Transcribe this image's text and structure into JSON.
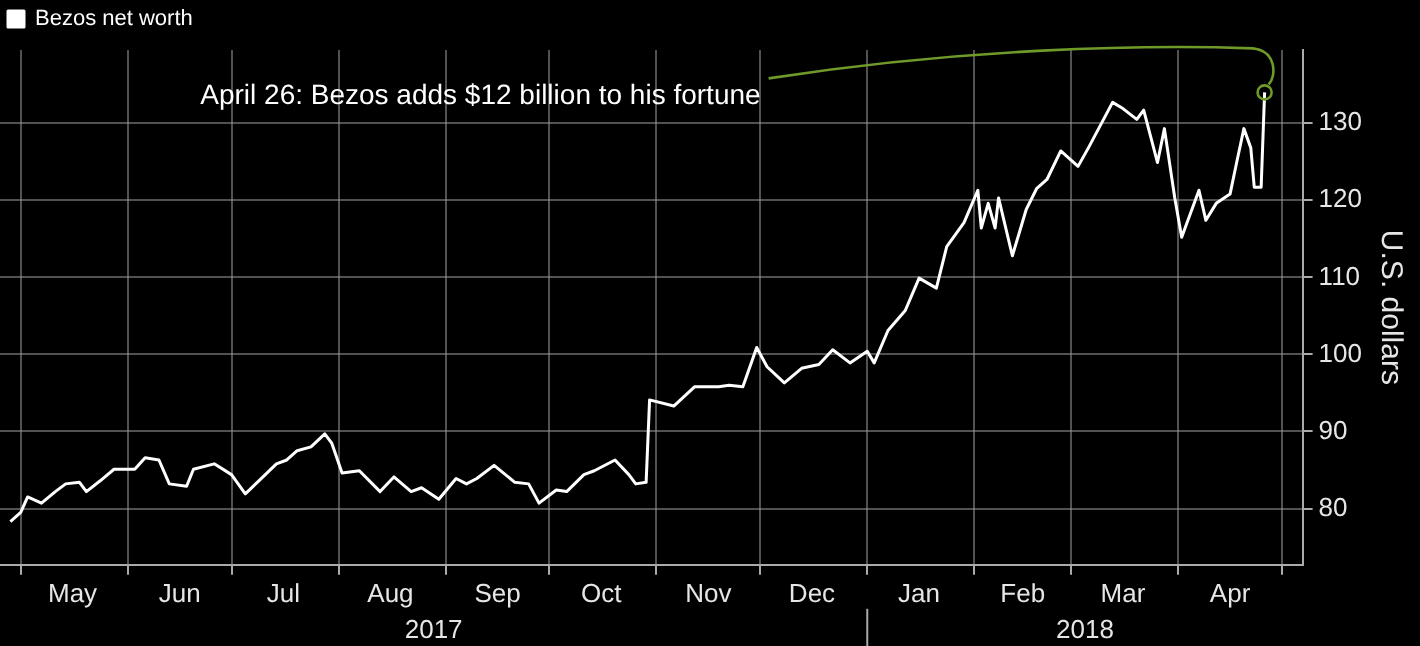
{
  "chart_data": {
    "type": "line",
    "ylabel": "U.S. dollars",
    "legend": "top left",
    "grid": true,
    "marker": "none",
    "line_style": "solid",
    "x": [
      "2017-04-28",
      "2017-05-01",
      "2017-05-03",
      "2017-05-07",
      "2017-05-11",
      "2017-05-14",
      "2017-05-18",
      "2017-05-20",
      "2017-05-24",
      "2017-05-28",
      "2017-06-03",
      "2017-06-06",
      "2017-06-10",
      "2017-06-13",
      "2017-06-18",
      "2017-06-20",
      "2017-06-26",
      "2017-07-01",
      "2017-07-05",
      "2017-07-08",
      "2017-07-14",
      "2017-07-17",
      "2017-07-20",
      "2017-07-24",
      "2017-07-28",
      "2017-07-30",
      "2017-08-02",
      "2017-08-07",
      "2017-08-13",
      "2017-08-17",
      "2017-08-22",
      "2017-08-25",
      "2017-08-30",
      "2017-09-04",
      "2017-09-07",
      "2017-09-10",
      "2017-09-15",
      "2017-09-21",
      "2017-09-25",
      "2017-09-28",
      "2017-10-03",
      "2017-10-06",
      "2017-10-11",
      "2017-10-14",
      "2017-10-20",
      "2017-10-24",
      "2017-10-26",
      "2017-10-29",
      "2017-10-30",
      "2017-11-06",
      "2017-11-12",
      "2017-11-19",
      "2017-11-22",
      "2017-11-26",
      "2017-11-30",
      "2017-12-03",
      "2017-12-08",
      "2017-12-13",
      "2017-12-18",
      "2017-12-22",
      "2017-12-27",
      "2018-01-01",
      "2018-01-03",
      "2018-01-07",
      "2018-01-12",
      "2018-01-16",
      "2018-01-21",
      "2018-01-24",
      "2018-01-29",
      "2018-02-02",
      "2018-02-03",
      "2018-02-05",
      "2018-02-07",
      "2018-02-08",
      "2018-02-12",
      "2018-02-16",
      "2018-02-19",
      "2018-02-22",
      "2018-02-26",
      "2018-03-03",
      "2018-03-06",
      "2018-03-13",
      "2018-03-16",
      "2018-03-20",
      "2018-03-22",
      "2018-03-26",
      "2018-03-28",
      "2018-03-31",
      "2018-04-02",
      "2018-04-07",
      "2018-04-09",
      "2018-04-12",
      "2018-04-16",
      "2018-04-18",
      "2018-04-20",
      "2018-04-22",
      "2018-04-23",
      "2018-04-25",
      "2018-04-26"
    ],
    "series": [
      {
        "name": "Bezos net worth",
        "color": "#ffffff",
        "values": [
          78.3,
          79.5,
          81.5,
          80.7,
          82.2,
          83.2,
          83.4,
          82.2,
          83.6,
          85.1,
          85.1,
          86.6,
          86.3,
          83.2,
          82.9,
          85.1,
          85.8,
          84.4,
          81.9,
          83.2,
          85.8,
          86.3,
          87.5,
          88,
          89.7,
          88.5,
          84.6,
          84.9,
          82.2,
          84.1,
          82.2,
          82.7,
          81.2,
          83.9,
          83.2,
          83.9,
          85.6,
          83.4,
          83.2,
          80.7,
          82.4,
          82.2,
          84.4,
          84.9,
          86.3,
          84.4,
          83.2,
          83.4,
          94.1,
          93.3,
          95.8,
          95.8,
          96,
          95.8,
          100.9,
          98.4,
          96.3,
          98.2,
          98.7,
          100.6,
          98.9,
          100.4,
          98.9,
          103.1,
          105.7,
          109.9,
          108.6,
          114,
          117.1,
          121.3,
          116.4,
          119.6,
          116.4,
          120.3,
          112.8,
          118.8,
          121.5,
          122.7,
          126.4,
          124.4,
          126.8,
          132.7,
          131.9,
          130.5,
          131.7,
          124.9,
          129.3,
          120.3,
          115.2,
          121.3,
          117.4,
          119.6,
          120.8,
          125.1,
          129.3,
          126.8,
          121.7,
          121.7,
          134
        ]
      }
    ],
    "xlim": [
      "2017-04-25",
      "2018-05-07"
    ],
    "xticks": [
      {
        "value": "2017-05-01",
        "label": null
      },
      {
        "value": "2017-05-16",
        "label": "May"
      },
      {
        "value": "2017-06-01",
        "label": null
      },
      {
        "value": "2017-06-16",
        "label": "Jun"
      },
      {
        "value": "2017-07-01",
        "label": null
      },
      {
        "value": "2017-07-16",
        "label": "Jul"
      },
      {
        "value": "2017-08-01",
        "label": null
      },
      {
        "value": "2017-08-16",
        "label": "Aug"
      },
      {
        "value": "2017-09-01",
        "label": null
      },
      {
        "value": "2017-09-16",
        "label": "Sep"
      },
      {
        "value": "2017-10-01",
        "label": null
      },
      {
        "value": "2017-10-16",
        "label": "Oct"
      },
      {
        "value": "2017-11-01",
        "label": null
      },
      {
        "value": "2017-11-16",
        "label": "Nov"
      },
      {
        "value": "2017-12-01",
        "label": null
      },
      {
        "value": "2017-12-16",
        "label": "Dec"
      },
      {
        "value": "2018-01-01",
        "label": null
      },
      {
        "value": "2018-01-16",
        "label": "Jan"
      },
      {
        "value": "2018-02-01",
        "label": null
      },
      {
        "value": "2018-02-15",
        "label": "Feb"
      },
      {
        "value": "2018-03-01",
        "label": null
      },
      {
        "value": "2018-03-16",
        "label": "Mar"
      },
      {
        "value": "2018-04-01",
        "label": null
      },
      {
        "value": "2018-04-16",
        "label": "Apr"
      },
      {
        "value": "2018-05-01",
        "label": null
      }
    ],
    "ylim": [
      72.7,
      139.5
    ],
    "yticks": [
      80,
      90,
      100,
      110,
      120,
      130
    ],
    "annotations": [
      {
        "text": "April 26: Bezos adds $12 billion to his fortune",
        "x": "2018-04-26",
        "y": 134
      },
      "2017",
      "2018"
    ]
  }
}
